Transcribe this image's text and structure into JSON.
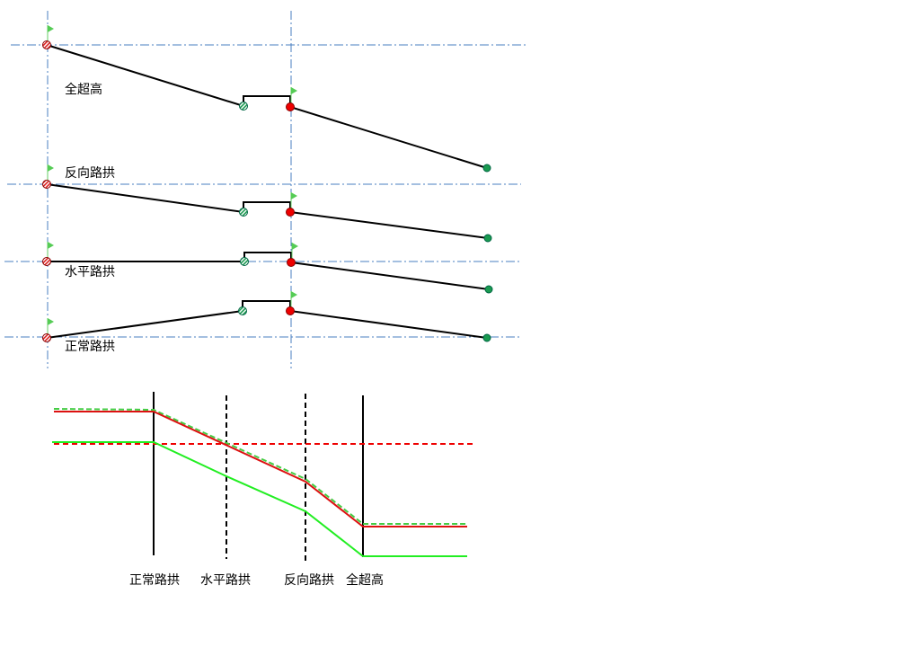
{
  "cross_sections": [
    {
      "label": "全超高"
    },
    {
      "label": "反向路拱"
    },
    {
      "label": "水平路拱"
    },
    {
      "label": "正常路拱"
    }
  ],
  "transition_labels": [
    "正常路拱",
    "水平路拱",
    "反向路拱",
    "全超高"
  ]
}
